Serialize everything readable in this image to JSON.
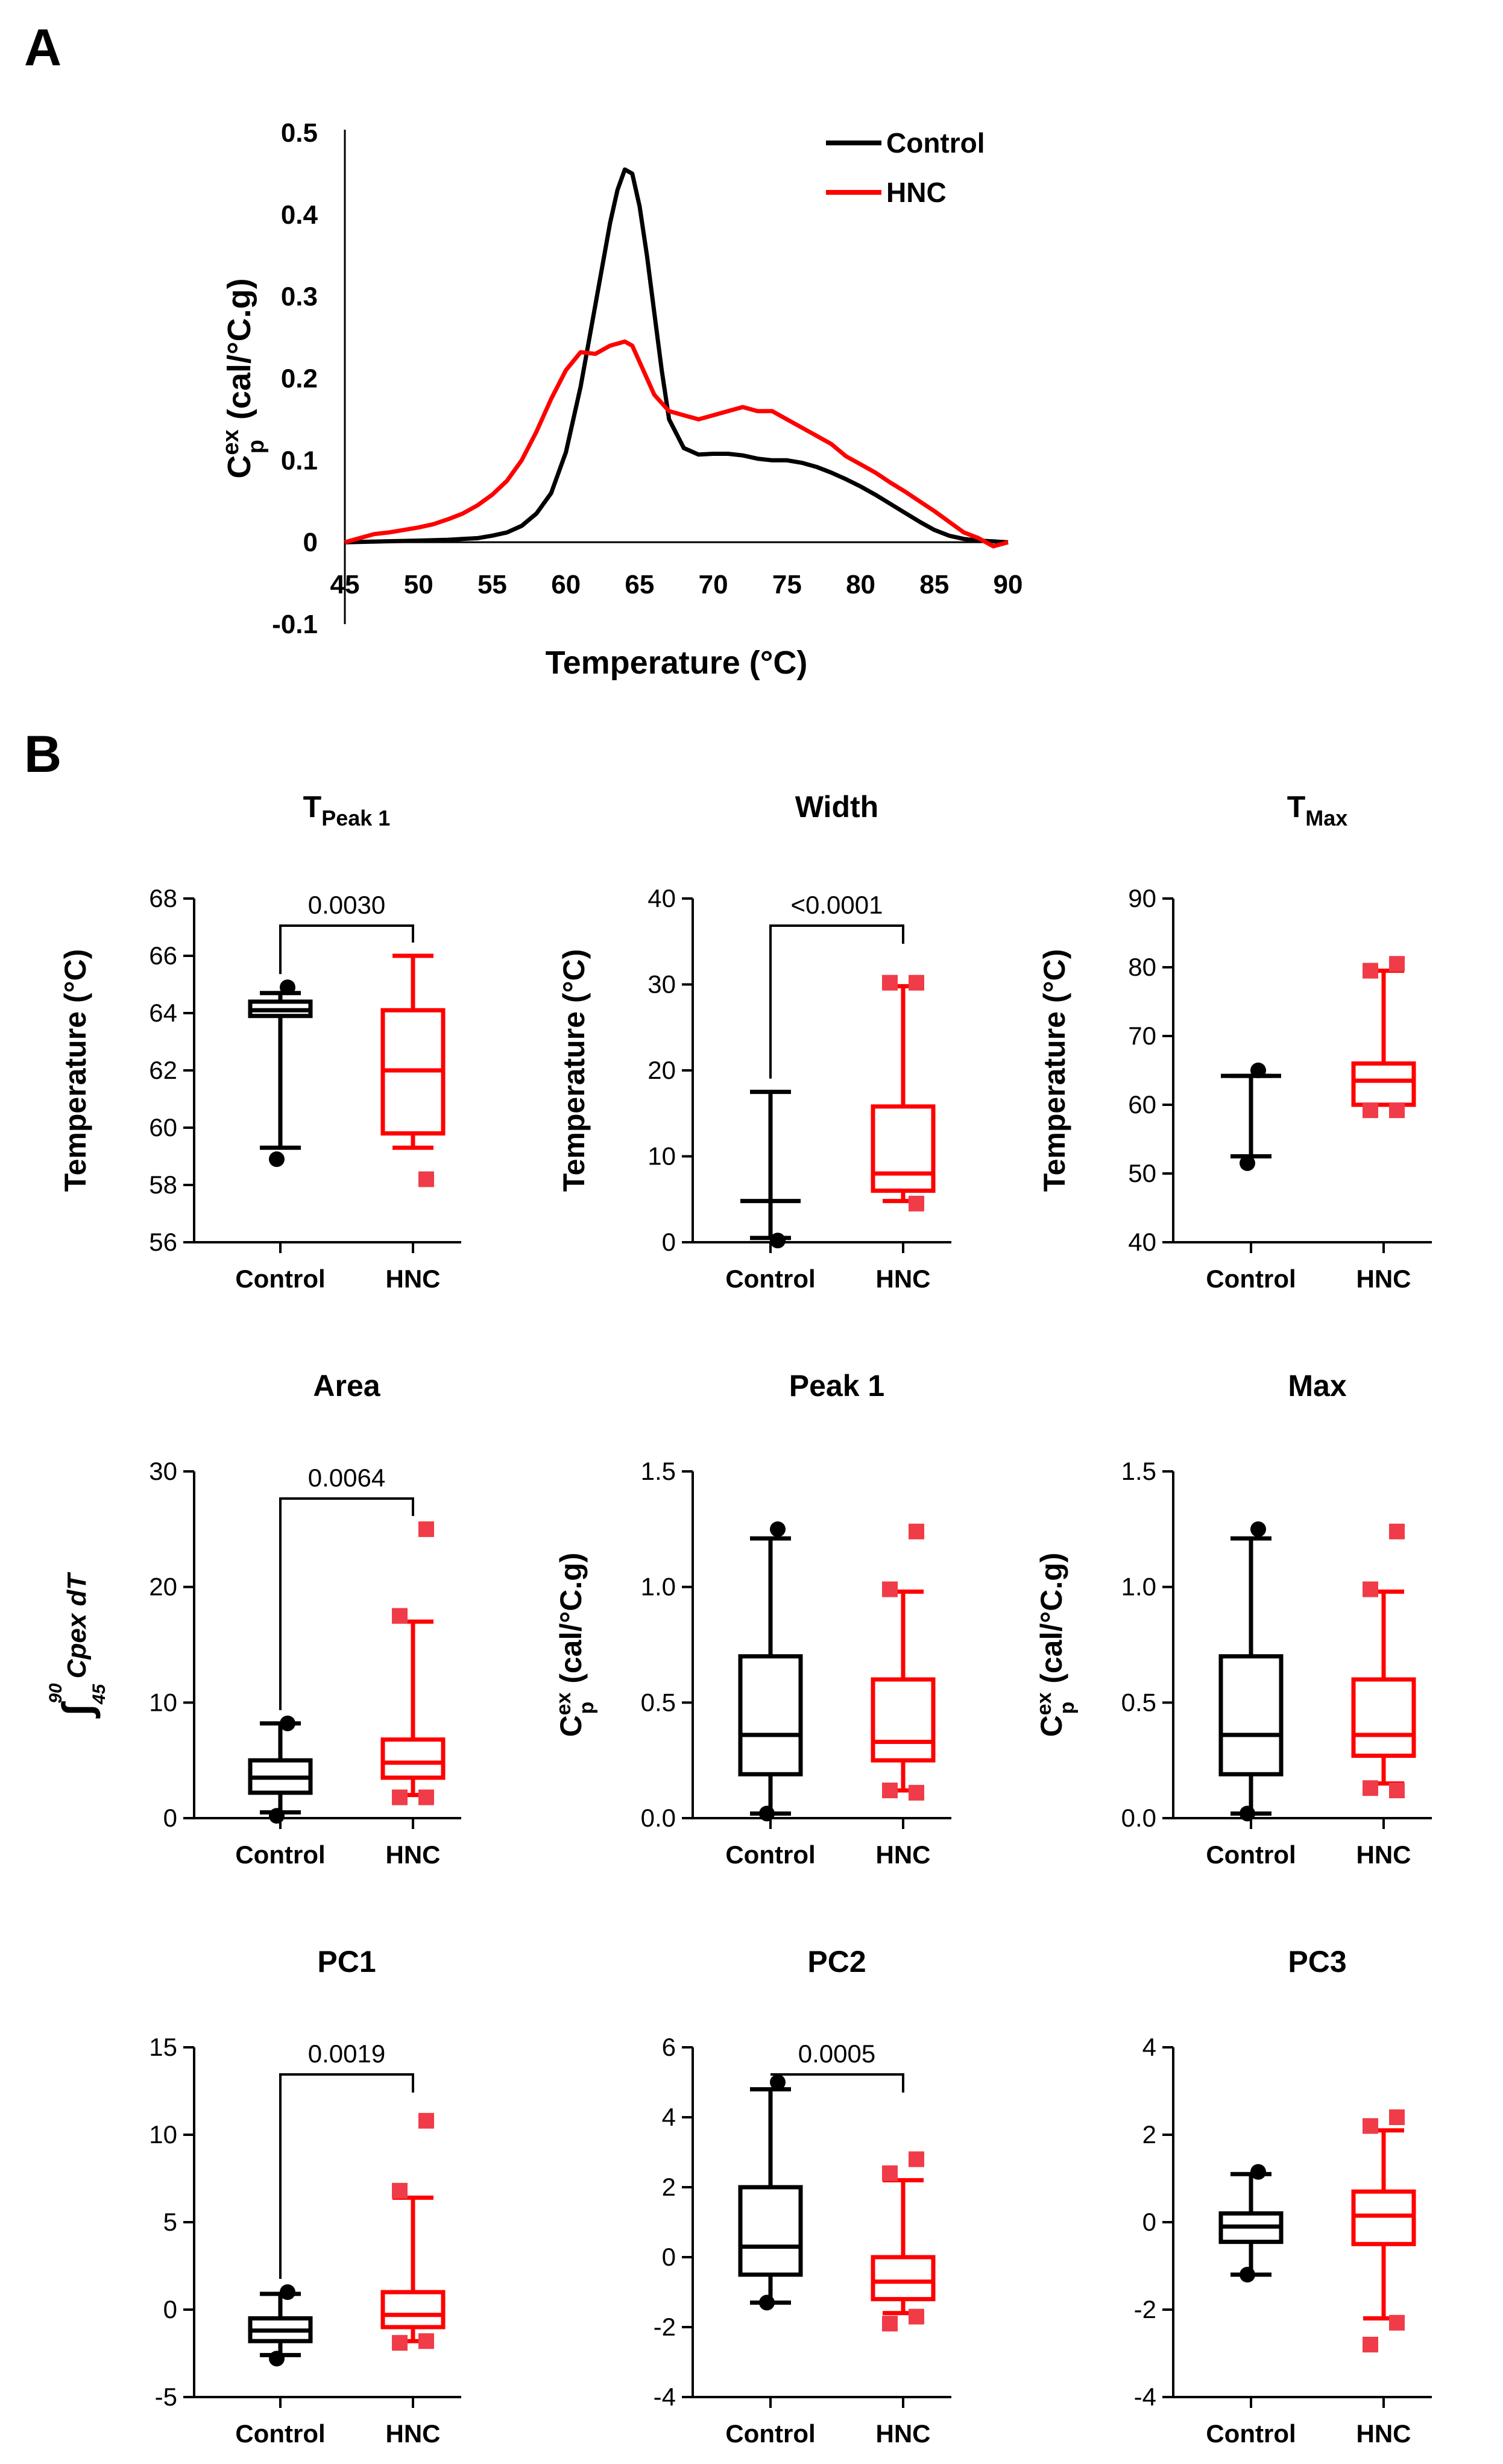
{
  "panels": {
    "a_label": "A",
    "b_label": "B"
  },
  "chart_data": [
    {
      "type": "line",
      "title": "",
      "xlabel": "Temperature (°C)",
      "ylabel": {
        "base": "C",
        "sup": "ex",
        "sub": "p",
        "unit": " (cal/°C.g)"
      },
      "xlim": [
        45,
        90
      ],
      "ylim": [
        -0.1,
        0.5
      ],
      "xticks": [
        "45",
        "50",
        "55",
        "60",
        "65",
        "70",
        "75",
        "80",
        "85",
        "90"
      ],
      "yticks": [
        "-0.1",
        "0",
        "0.1",
        "0.2",
        "0.3",
        "0.4",
        "0.5"
      ],
      "legend_position": "top-right",
      "series": [
        {
          "name": "Control",
          "color": "#000000",
          "x": [
            45,
            50,
            52,
            54,
            55,
            56,
            57,
            58,
            59,
            60,
            61,
            62,
            63,
            63.5,
            64,
            64.5,
            65,
            65.5,
            66,
            66.5,
            67,
            68,
            69,
            70,
            71,
            72,
            73,
            74,
            75,
            76,
            77,
            78,
            79,
            80,
            81,
            82,
            83,
            84,
            85,
            86,
            87,
            88,
            89,
            90
          ],
          "y": [
            0,
            0.002,
            0.003,
            0.005,
            0.008,
            0.012,
            0.02,
            0.035,
            0.06,
            0.11,
            0.19,
            0.29,
            0.39,
            0.43,
            0.455,
            0.45,
            0.41,
            0.35,
            0.28,
            0.21,
            0.15,
            0.115,
            0.107,
            0.108,
            0.108,
            0.106,
            0.102,
            0.1,
            0.1,
            0.097,
            0.092,
            0.085,
            0.077,
            0.068,
            0.058,
            0.047,
            0.036,
            0.025,
            0.015,
            0.008,
            0.004,
            0.002,
            0.001,
            0
          ]
        },
        {
          "name": "HNC",
          "color": "#ff0000",
          "x": [
            45,
            46,
            47,
            48,
            49,
            50,
            51,
            52,
            53,
            54,
            55,
            56,
            57,
            58,
            59,
            60,
            61,
            62,
            63,
            64,
            64.5,
            65,
            66,
            67,
            68,
            69,
            70,
            71,
            72,
            73,
            74,
            75,
            76,
            77,
            78,
            79,
            80,
            81,
            82,
            83,
            84,
            85,
            86,
            87,
            88,
            89,
            90
          ],
          "y": [
            0,
            0.005,
            0.01,
            0.012,
            0.015,
            0.018,
            0.022,
            0.028,
            0.035,
            0.045,
            0.058,
            0.075,
            0.1,
            0.135,
            0.175,
            0.21,
            0.232,
            0.23,
            0.24,
            0.245,
            0.24,
            0.22,
            0.18,
            0.16,
            0.155,
            0.15,
            0.155,
            0.16,
            0.165,
            0.16,
            0.16,
            0.15,
            0.14,
            0.13,
            0.12,
            0.105,
            0.095,
            0.085,
            0.073,
            0.062,
            0.05,
            0.038,
            0.025,
            0.012,
            0.005,
            -0.005,
            0
          ]
        }
      ]
    },
    {
      "type": "box",
      "title": "TPeak 1",
      "title_main": "T",
      "title_sub": "Peak 1",
      "ylabel": "Temperature (°C)",
      "ylim": [
        56,
        68
      ],
      "yticks": [
        "56",
        "58",
        "60",
        "62",
        "64",
        "66",
        "68"
      ],
      "categories": [
        "Control",
        "HNC"
      ],
      "pvalue": "0.0030",
      "boxes": [
        {
          "group": "Control",
          "color": "#000000",
          "min": 59.3,
          "q1": 63.9,
          "median": 64.1,
          "q3": 64.4,
          "max": 64.7,
          "outliers": [
            64.9,
            58.9
          ]
        },
        {
          "group": "HNC",
          "color": "#ff0000",
          "min": 59.3,
          "q1": 59.8,
          "median": 62.0,
          "q3": 64.1,
          "max": 66.0,
          "outliers": [
            58.2
          ]
        }
      ]
    },
    {
      "type": "box",
      "title": "Width",
      "ylabel": "Temperature (°C)",
      "ylim": [
        0,
        40
      ],
      "yticks": [
        "0",
        "10",
        "20",
        "30",
        "40"
      ],
      "categories": [
        "Control",
        "HNC"
      ],
      "pvalue": "<0.0001",
      "boxes": [
        {
          "group": "Control",
          "color": "#000000",
          "min": 0.5,
          "q1": 4.8,
          "median": 4.8,
          "q3": 4.8,
          "max": 17.5,
          "outliers": [
            0.2
          ]
        },
        {
          "group": "HNC",
          "color": "#ff0000",
          "min": 4.8,
          "q1": 6.0,
          "median": 8.0,
          "q3": 15.8,
          "max": 29.8,
          "outliers": [
            30.2,
            30.2,
            4.5
          ]
        }
      ]
    },
    {
      "type": "box",
      "title": "TMax",
      "title_main": "T",
      "title_sub": "Max",
      "ylabel": "Temperature (°C)",
      "ylim": [
        40,
        90
      ],
      "yticks": [
        "40",
        "50",
        "60",
        "70",
        "80",
        "90"
      ],
      "categories": [
        "Control",
        "HNC"
      ],
      "boxes": [
        {
          "group": "Control",
          "color": "#000000",
          "min": 52.5,
          "q1": 64.2,
          "median": 64.2,
          "q3": 64.2,
          "max": 64.2,
          "outliers": [
            65.0,
            51.5
          ]
        },
        {
          "group": "HNC",
          "color": "#ff0000",
          "min": 60.0,
          "q1": 60.0,
          "median": 63.5,
          "q3": 66.0,
          "max": 79.5,
          "outliers": [
            80.5,
            79.5,
            59.2,
            59.2
          ]
        }
      ]
    },
    {
      "type": "box",
      "title": "Area",
      "ylabel": "∫",
      "ylabel_upper": "90",
      "ylabel_lower": "45",
      "ylabel_expr": "Cpex dT",
      "ylim": [
        0,
        30
      ],
      "yticks": [
        "0",
        "10",
        "20",
        "30"
      ],
      "categories": [
        "Control",
        "HNC"
      ],
      "pvalue": "0.0064",
      "boxes": [
        {
          "group": "Control",
          "color": "#000000",
          "min": 0.5,
          "q1": 2.2,
          "median": 3.5,
          "q3": 5.0,
          "max": 8.2,
          "outliers": [
            8.2,
            0.2
          ]
        },
        {
          "group": "HNC",
          "color": "#ff0000",
          "min": 2.0,
          "q1": 3.5,
          "median": 4.8,
          "q3": 6.8,
          "max": 17.0,
          "outliers": [
            25.0,
            17.5,
            1.8,
            1.8
          ]
        }
      ]
    },
    {
      "type": "box",
      "title": "Peak 1",
      "ylabel": {
        "base": "C",
        "sup": "ex",
        "sub": "p",
        "unit": " (cal/°C.g)"
      },
      "ylim": [
        0,
        1.5
      ],
      "yticks": [
        "0.0",
        "0.5",
        "1.0",
        "1.5"
      ],
      "categories": [
        "Control",
        "HNC"
      ],
      "boxes": [
        {
          "group": "Control",
          "color": "#000000",
          "min": 0.02,
          "q1": 0.19,
          "median": 0.36,
          "q3": 0.7,
          "max": 1.21,
          "outliers": [
            1.25,
            0.02
          ]
        },
        {
          "group": "HNC",
          "color": "#ff0000",
          "min": 0.12,
          "q1": 0.25,
          "median": 0.33,
          "q3": 0.6,
          "max": 0.98,
          "outliers": [
            1.24,
            0.99,
            0.11,
            0.12
          ]
        }
      ]
    },
    {
      "type": "box",
      "title": "Max",
      "ylabel": {
        "base": "C",
        "sup": "ex",
        "sub": "p",
        "unit": " (cal/°C.g)"
      },
      "ylim": [
        0,
        1.5
      ],
      "yticks": [
        "0.0",
        "0.5",
        "1.0",
        "1.5"
      ],
      "categories": [
        "Control",
        "HNC"
      ],
      "boxes": [
        {
          "group": "Control",
          "color": "#000000",
          "min": 0.02,
          "q1": 0.19,
          "median": 0.36,
          "q3": 0.7,
          "max": 1.21,
          "outliers": [
            1.25,
            0.02
          ]
        },
        {
          "group": "HNC",
          "color": "#ff0000",
          "min": 0.15,
          "q1": 0.27,
          "median": 0.36,
          "q3": 0.6,
          "max": 0.98,
          "outliers": [
            1.24,
            0.99,
            0.12,
            0.13
          ]
        }
      ]
    },
    {
      "type": "box",
      "title": "PC1",
      "ylabel": "",
      "ylim": [
        -5,
        15
      ],
      "yticks": [
        "-5",
        "0",
        "5",
        "10",
        "15"
      ],
      "categories": [
        "Control",
        "HNC"
      ],
      "pvalue": "0.0019",
      "boxes": [
        {
          "group": "Control",
          "color": "#000000",
          "min": -2.6,
          "q1": -1.8,
          "median": -1.2,
          "q3": -0.5,
          "max": 0.9,
          "outliers": [
            1.0,
            -2.8
          ]
        },
        {
          "group": "HNC",
          "color": "#ff0000",
          "min": -1.8,
          "q1": -1.0,
          "median": -0.3,
          "q3": 1.0,
          "max": 6.4,
          "outliers": [
            10.8,
            6.8,
            -1.8,
            -1.9
          ]
        }
      ]
    },
    {
      "type": "box",
      "title": "PC2",
      "ylabel": "",
      "ylim": [
        -4,
        6
      ],
      "yticks": [
        "-4",
        "-2",
        "0",
        "2",
        "4",
        "6"
      ],
      "categories": [
        "Control",
        "HNC"
      ],
      "pvalue": "0.0005",
      "boxes": [
        {
          "group": "Control",
          "color": "#000000",
          "min": -1.3,
          "q1": -0.5,
          "median": 0.3,
          "q3": 2.0,
          "max": 4.8,
          "outliers": [
            5.0,
            -1.3
          ]
        },
        {
          "group": "HNC",
          "color": "#ff0000",
          "min": -1.6,
          "q1": -1.2,
          "median": -0.7,
          "q3": 0.0,
          "max": 2.2,
          "outliers": [
            2.8,
            2.4,
            -1.7,
            -1.9
          ]
        }
      ]
    },
    {
      "type": "box",
      "title": "PC3",
      "ylabel": "",
      "ylim": [
        -4,
        4
      ],
      "yticks": [
        "-4",
        "-2",
        "0",
        "2",
        "4"
      ],
      "categories": [
        "Control",
        "HNC"
      ],
      "boxes": [
        {
          "group": "Control",
          "color": "#000000",
          "min": -1.2,
          "q1": -0.45,
          "median": -0.1,
          "q3": 0.2,
          "max": 1.1,
          "outliers": [
            1.15,
            -1.2
          ]
        },
        {
          "group": "HNC",
          "color": "#ff0000",
          "min": -2.2,
          "q1": -0.5,
          "median": 0.15,
          "q3": 0.7,
          "max": 2.1,
          "outliers": [
            2.4,
            2.2,
            -2.3,
            -2.8
          ]
        }
      ]
    }
  ]
}
